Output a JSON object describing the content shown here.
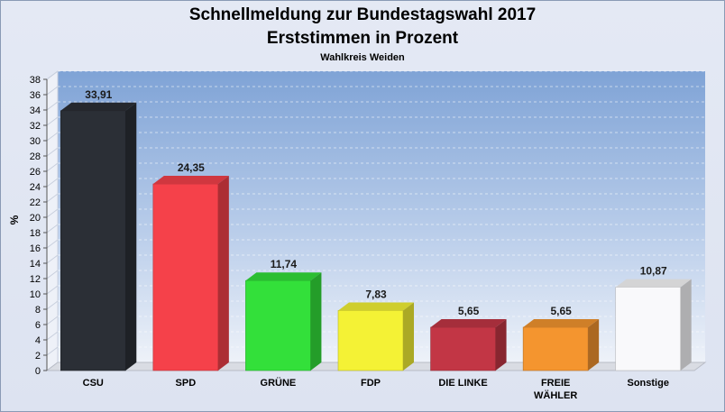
{
  "chart_data": {
    "type": "bar",
    "title": "Schnellmeldung zur Bundestagswahl 2017",
    "subtitle": "Erststimmen in Prozent",
    "subtitle2": "Wahlkreis Weiden",
    "ylabel": "%",
    "xlabel": "",
    "ylim": [
      0,
      38
    ],
    "ytick_step": 2,
    "grid": true,
    "categories": [
      "CSU",
      "SPD",
      "GRÜNE",
      "FDP",
      "DIE LINKE",
      "FREIE WÄHLER",
      "Sonstige"
    ],
    "category_lines": [
      [
        "CSU"
      ],
      [
        "SPD"
      ],
      [
        "GRÜNE"
      ],
      [
        "FDP"
      ],
      [
        "DIE LINKE"
      ],
      [
        "FREIE",
        "WÄHLER"
      ],
      [
        "Sonstige"
      ]
    ],
    "values": [
      33.91,
      24.35,
      11.74,
      7.83,
      5.65,
      5.65,
      10.87
    ],
    "labels": [
      "33,91",
      "24,35",
      "11,74",
      "7,83",
      "5,65",
      "5,65",
      "10,87"
    ],
    "colors": [
      "#2b2f36",
      "#f5414a",
      "#33e03a",
      "#f4f235",
      "#c23645",
      "#f4952f",
      "#f9f9fb"
    ]
  }
}
